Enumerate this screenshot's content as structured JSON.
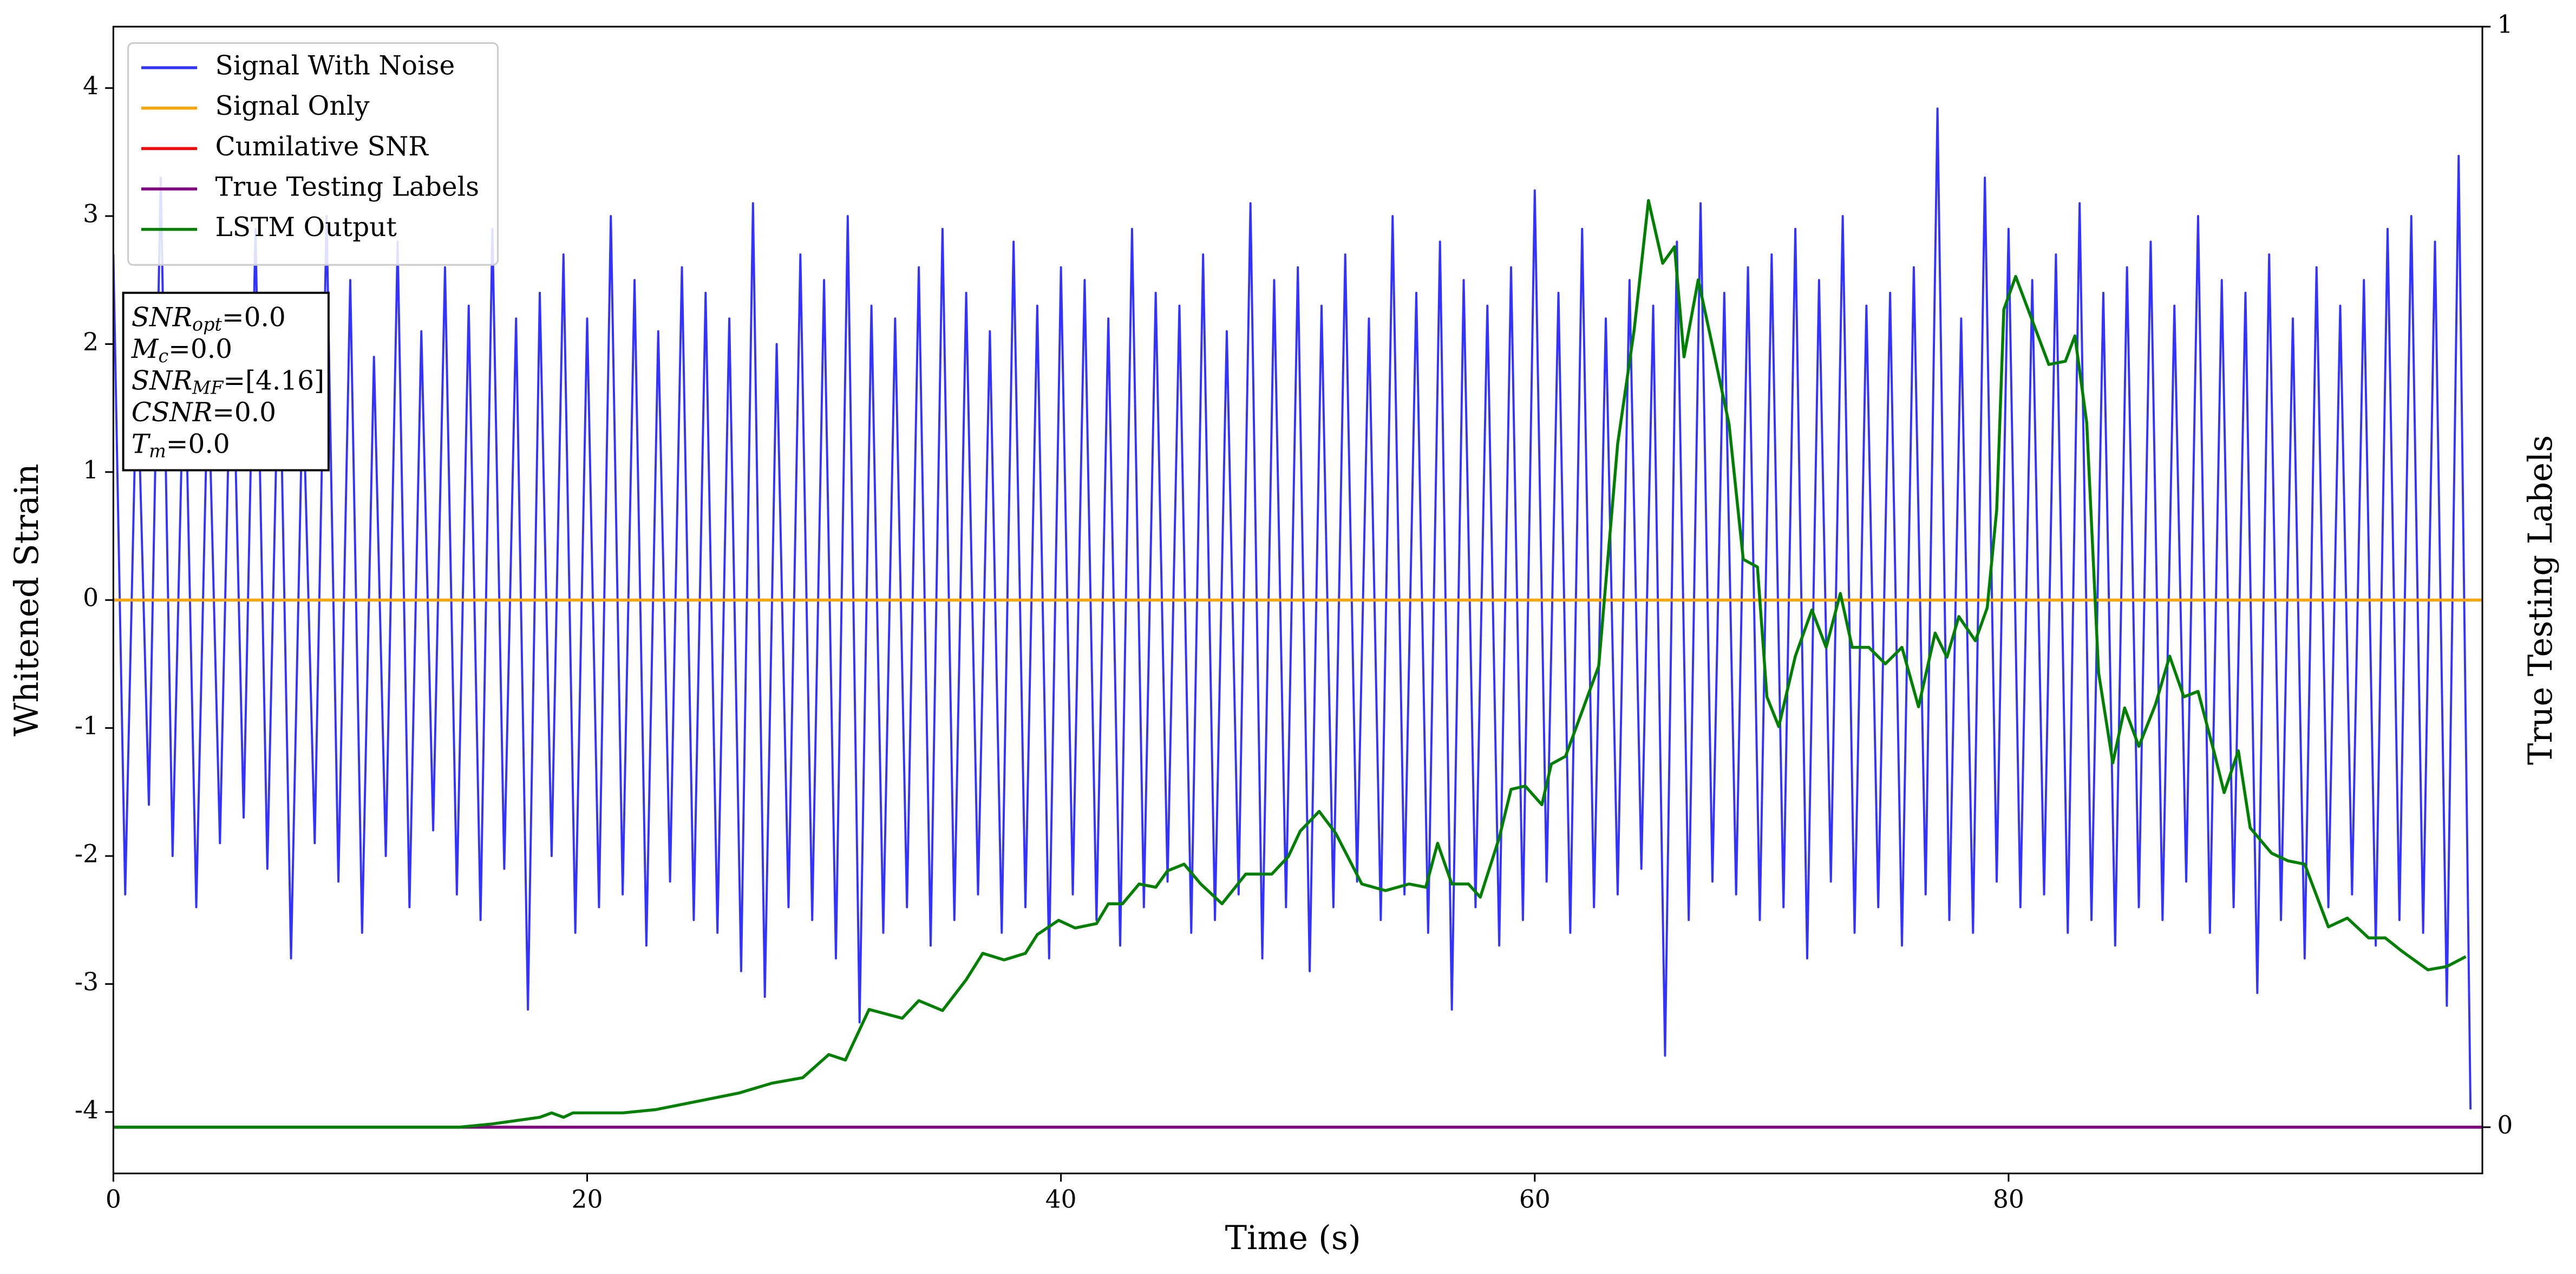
{
  "chart_data": {
    "type": "line",
    "xlabel": "Time (s)",
    "ylabel": "Whitened Strain",
    "y2label": "True Testing Labels",
    "xlim": [
      0,
      100
    ],
    "xticks": [
      0,
      20,
      40,
      60,
      80
    ],
    "ylim": [
      -4.48,
      4.48
    ],
    "yticks": [
      -4,
      -3,
      -2,
      -1,
      0,
      1,
      2,
      3,
      4
    ],
    "y2lim": [
      -0.042,
      1
    ],
    "y2ticks": [
      0,
      1
    ],
    "legend": "upper left",
    "series": [
      {
        "name": "Signal With Noise",
        "color": "#3333ff",
        "x": [
          0,
          0.5,
          1,
          1.5,
          2,
          2.5,
          3,
          3.5,
          4,
          4.5,
          5,
          5.5,
          6,
          6.5,
          7,
          7.5,
          8,
          8.5,
          9,
          9.5,
          10,
          10.5,
          11,
          11.5,
          12,
          12.5,
          13,
          13.5,
          14,
          14.5,
          15,
          15.5,
          16,
          16.5,
          17,
          17.5,
          18,
          18.5,
          19,
          19.5,
          20,
          20.5,
          21,
          21.5,
          22,
          22.5,
          23,
          23.5,
          24,
          24.5,
          25,
          25.5,
          26,
          26.5,
          27,
          27.5,
          28,
          28.5,
          29,
          29.5,
          30,
          30.5,
          31,
          31.5,
          32,
          32.5,
          33,
          33.5,
          34,
          34.5,
          35,
          35.5,
          36,
          36.5,
          37,
          37.5,
          38,
          38.5,
          39,
          39.5,
          40,
          40.5,
          41,
          41.5,
          42,
          42.5,
          43,
          43.5,
          44,
          44.5,
          45,
          45.5,
          46,
          46.5,
          47,
          47.5,
          48,
          48.5,
          49,
          49.5,
          50,
          50.5,
          51,
          51.5,
          52,
          52.5,
          53,
          53.5,
          54,
          54.5,
          55,
          55.5,
          56,
          56.5,
          57,
          57.5,
          58,
          58.5,
          59,
          59.5,
          60,
          60.5,
          61,
          61.5,
          62,
          62.5,
          63,
          63.5,
          64,
          64.5,
          65,
          65.5,
          66,
          66.5,
          67,
          67.5,
          68,
          68.5,
          69,
          69.5,
          70,
          70.5,
          71,
          71.5,
          72,
          72.5,
          73,
          73.5,
          74,
          74.5,
          75,
          75.5,
          76,
          76.5,
          77,
          77.5,
          78,
          78.5,
          79,
          79.5,
          80,
          80.5,
          81,
          81.5,
          82,
          82.5,
          83,
          83.5,
          84,
          84.5,
          85,
          85.5,
          86,
          86.5,
          87,
          87.5,
          88,
          88.5,
          89,
          89.5,
          90,
          90.5,
          91,
          91.5,
          92,
          92.5,
          93,
          93.5,
          94,
          94.5,
          95,
          95.5,
          96,
          96.5,
          97,
          97.5,
          98,
          98.5,
          99,
          99.5
        ],
        "values": [
          2.7,
          -2.3,
          1.9,
          -1.6,
          3.3,
          -2.0,
          2.1,
          -2.4,
          1.8,
          -1.9,
          2.4,
          -1.7,
          2.9,
          -2.1,
          2.2,
          -2.8,
          1.7,
          -1.9,
          3.0,
          -2.2,
          2.5,
          -2.6,
          1.9,
          -2.0,
          2.8,
          -2.4,
          2.1,
          -1.8,
          2.6,
          -2.3,
          2.3,
          -2.5,
          2.9,
          -2.1,
          2.2,
          -3.2,
          2.4,
          -2.0,
          2.7,
          -2.6,
          2.2,
          -2.4,
          3.0,
          -2.3,
          2.5,
          -2.7,
          2.1,
          -2.2,
          2.6,
          -2.5,
          2.4,
          -2.6,
          2.2,
          -2.9,
          3.1,
          -3.1,
          2.0,
          -2.4,
          2.7,
          -2.5,
          2.5,
          -2.8,
          3.0,
          -3.3,
          2.3,
          -2.6,
          2.2,
          -2.4,
          2.6,
          -2.7,
          2.9,
          -2.5,
          2.4,
          -2.3,
          2.1,
          -2.6,
          2.8,
          -2.4,
          2.3,
          -2.8,
          2.6,
          -2.3,
          2.5,
          -2.5,
          2.2,
          -2.7,
          2.9,
          -2.4,
          2.4,
          -2.2,
          2.3,
          -2.6,
          2.7,
          -2.5,
          2.1,
          -2.3,
          3.1,
          -2.8,
          2.5,
          -2.4,
          2.6,
          -2.9,
          2.3,
          -2.4,
          2.7,
          -2.2,
          2.2,
          -2.5,
          3.0,
          -2.3,
          2.4,
          -2.6,
          2.8,
          -3.2,
          2.5,
          -2.4,
          2.3,
          -2.7,
          2.6,
          -2.5,
          3.2,
          -2.2,
          2.4,
          -2.6,
          2.9,
          -2.4,
          2.2,
          -2.3,
          2.5,
          -2.1,
          2.3,
          -3.56,
          2.8,
          -2.5,
          3.1,
          -2.2,
          2.4,
          -2.3,
          2.6,
          -2.5,
          2.7,
          -2.4,
          2.9,
          -2.8,
          2.5,
          -2.2,
          3.0,
          -2.6,
          2.3,
          -2.4,
          2.4,
          -2.7,
          2.6,
          -2.3,
          3.84,
          -2.5,
          2.2,
          -2.6,
          3.3,
          -2.2,
          2.9,
          -2.4,
          2.5,
          -2.3,
          2.7,
          -2.6,
          3.1,
          -2.5,
          2.4,
          -2.7,
          2.6,
          -2.4,
          2.8,
          -2.5,
          2.3,
          -2.2,
          3.0,
          -2.6,
          2.5,
          -2.4,
          2.4,
          -3.07,
          2.7,
          -2.5,
          2.2,
          -2.8,
          2.6,
          -2.4,
          2.3,
          -2.3,
          2.5,
          -2.7,
          2.9,
          -2.5,
          3.0,
          -2.6,
          2.8,
          -3.17,
          3.47,
          -3.98
        ]
      },
      {
        "name": "Signal Only",
        "color": "#ffa500",
        "x": [
          0,
          100
        ],
        "values": [
          0,
          0
        ]
      },
      {
        "name": "Cumilative SNR",
        "color": "#ff0000",
        "x": [
          0,
          100
        ],
        "values": [
          0,
          0
        ]
      },
      {
        "name": "True Testing Labels",
        "color": "#800080",
        "axis": "y2",
        "x": [
          0,
          100
        ],
        "values": [
          0,
          0
        ]
      },
      {
        "name": "LSTM Output",
        "color": "#008000",
        "axis": "y2",
        "x": [
          0,
          14.6,
          16,
          18,
          18.5,
          19,
          19.4,
          21.5,
          22.9,
          25,
          26.4,
          27.8,
          29.1,
          30.2,
          30.9,
          31.9,
          33.3,
          34,
          35,
          36,
          36.7,
          37.6,
          38.5,
          39,
          39.9,
          40.6,
          41.5,
          42,
          42.6,
          43.3,
          44,
          44.5,
          45.2,
          45.9,
          46.8,
          47.8,
          48.9,
          49.6,
          50.1,
          50.9,
          51.6,
          52.7,
          53.7,
          54.7,
          55.4,
          55.9,
          56.5,
          57.2,
          57.7,
          58.5,
          59,
          59.6,
          60.3,
          60.7,
          61.3,
          62.7,
          63.5,
          64.2,
          64.8,
          65.4,
          65.9,
          66.3,
          66.9,
          67.5,
          68.2,
          68.8,
          69.4,
          69.8,
          70.3,
          71,
          71.7,
          72.3,
          72.9,
          73.4,
          74.1,
          74.8,
          75.5,
          76.2,
          76.9,
          77.4,
          77.9,
          78.6,
          79.1,
          79.5,
          79.8,
          80.3,
          81,
          81.7,
          82.4,
          82.8,
          83.3,
          83.8,
          84.4,
          84.9,
          85.5,
          86.2,
          86.8,
          87.4,
          88,
          88.7,
          89.1,
          89.7,
          90.2,
          91.1,
          91.8,
          92.5,
          93.5,
          94.3,
          95.2,
          95.9,
          96.6,
          97.7,
          98.5,
          99.3
        ],
        "values": [
          0,
          0,
          0.003,
          0.009,
          0.013,
          0.009,
          0.013,
          0.013,
          0.016,
          0.025,
          0.031,
          0.04,
          0.045,
          0.066,
          0.061,
          0.107,
          0.099,
          0.115,
          0.106,
          0.134,
          0.158,
          0.152,
          0.158,
          0.175,
          0.188,
          0.181,
          0.185,
          0.203,
          0.203,
          0.221,
          0.218,
          0.233,
          0.239,
          0.221,
          0.203,
          0.23,
          0.23,
          0.246,
          0.269,
          0.287,
          0.267,
          0.221,
          0.215,
          0.221,
          0.218,
          0.258,
          0.221,
          0.221,
          0.209,
          0.263,
          0.307,
          0.31,
          0.293,
          0.33,
          0.337,
          0.419,
          0.621,
          0.725,
          0.842,
          0.785,
          0.8,
          0.7,
          0.77,
          0.71,
          0.639,
          0.516,
          0.509,
          0.391,
          0.364,
          0.428,
          0.47,
          0.436,
          0.485,
          0.436,
          0.436,
          0.421,
          0.436,
          0.382,
          0.449,
          0.427,
          0.464,
          0.442,
          0.472,
          0.561,
          0.743,
          0.773,
          0.733,
          0.693,
          0.696,
          0.719,
          0.64,
          0.413,
          0.331,
          0.381,
          0.346,
          0.384,
          0.428,
          0.391,
          0.396,
          0.339,
          0.304,
          0.342,
          0.272,
          0.249,
          0.242,
          0.239,
          0.182,
          0.19,
          0.172,
          0.172,
          0.16,
          0.143,
          0.146,
          0.155
        ]
      }
    ],
    "annotation": [
      {
        "name": "SNR",
        "sub": "opt",
        "text": "=0.0"
      },
      {
        "name": "M",
        "sub": "c",
        "text": "=0.0"
      },
      {
        "name": "SNR",
        "sub": "MF",
        "text": "=[4.16]"
      },
      {
        "name": "CSNR",
        "text": "=0.0"
      },
      {
        "name": "T",
        "sub": "m",
        "text": "=0.0"
      }
    ]
  }
}
